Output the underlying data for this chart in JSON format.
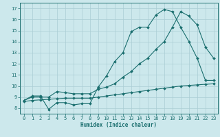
{
  "title": "",
  "xlabel": "Humidex (Indice chaleur)",
  "bg_color": "#cce8ec",
  "grid_color": "#aacdd4",
  "line_color": "#1a6e6e",
  "xlim": [
    -0.5,
    23.5
  ],
  "ylim": [
    7.5,
    17.5
  ],
  "xticks": [
    0,
    1,
    2,
    3,
    4,
    5,
    6,
    7,
    8,
    9,
    10,
    11,
    12,
    13,
    14,
    15,
    16,
    17,
    18,
    19,
    20,
    21,
    22,
    23
  ],
  "yticks": [
    8,
    9,
    10,
    11,
    12,
    13,
    14,
    15,
    16,
    17
  ],
  "line1_x": [
    0,
    1,
    2,
    3,
    4,
    5,
    6,
    7,
    8,
    9,
    10,
    11,
    12,
    13,
    14,
    15,
    16,
    17,
    18,
    19,
    20,
    21,
    22,
    23
  ],
  "line1_y": [
    8.7,
    9.1,
    9.1,
    7.9,
    8.5,
    8.5,
    8.3,
    8.4,
    8.4,
    9.9,
    10.9,
    12.2,
    13.0,
    14.9,
    15.3,
    15.3,
    16.4,
    16.9,
    16.7,
    15.3,
    14.0,
    12.5,
    10.5,
    10.5
  ],
  "line2_x": [
    0,
    1,
    2,
    3,
    4,
    5,
    6,
    7,
    8,
    9,
    10,
    11,
    12,
    13,
    14,
    15,
    16,
    17,
    18,
    19,
    20,
    21,
    22,
    23
  ],
  "line2_y": [
    8.7,
    9.0,
    9.0,
    9.0,
    9.5,
    9.4,
    9.3,
    9.3,
    9.3,
    9.7,
    9.9,
    10.2,
    10.8,
    11.3,
    12.0,
    12.5,
    13.3,
    14.0,
    15.3,
    16.7,
    16.3,
    15.5,
    13.5,
    12.5
  ],
  "line3_x": [
    0,
    1,
    2,
    3,
    4,
    5,
    6,
    7,
    8,
    9,
    10,
    11,
    12,
    13,
    14,
    15,
    16,
    17,
    18,
    19,
    20,
    21,
    22,
    23
  ],
  "line3_y": [
    8.6,
    8.7,
    8.75,
    8.8,
    8.85,
    8.9,
    8.9,
    8.9,
    8.9,
    9.0,
    9.1,
    9.2,
    9.3,
    9.4,
    9.5,
    9.6,
    9.7,
    9.8,
    9.9,
    10.0,
    10.05,
    10.1,
    10.15,
    10.2
  ]
}
